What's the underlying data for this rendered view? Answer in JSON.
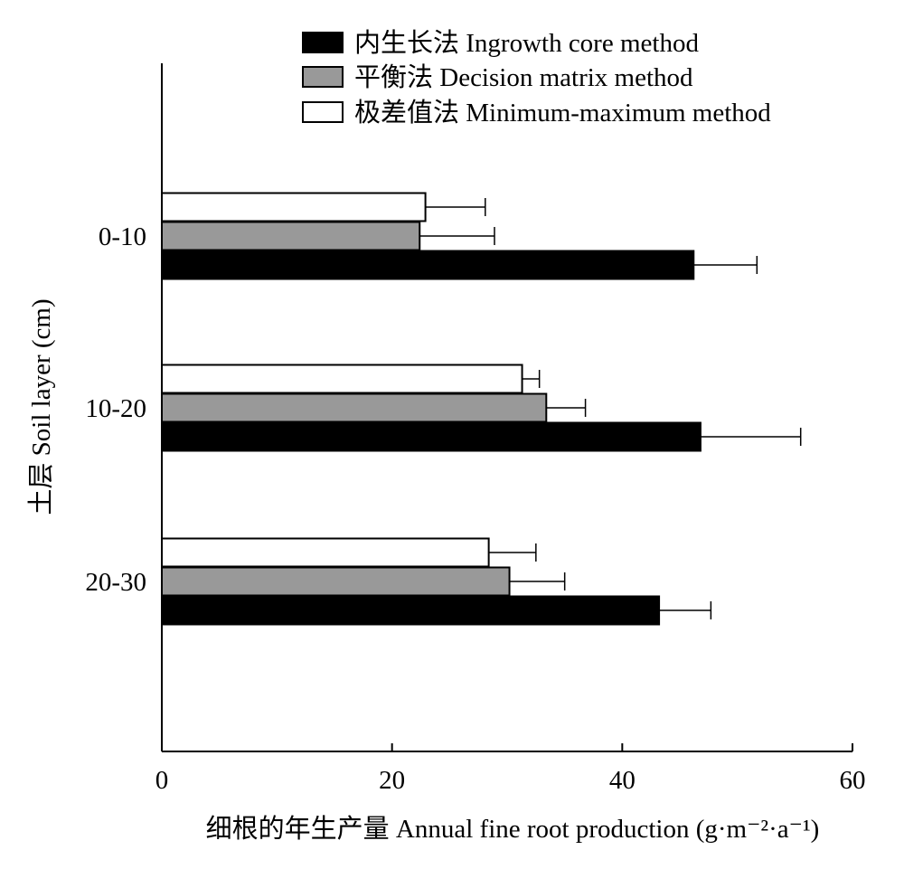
{
  "chart_data": {
    "type": "bar",
    "orientation": "horizontal",
    "categories": [
      "0-10",
      "10-20",
      "20-30"
    ],
    "series": [
      {
        "name": "内生长法 Ingrowth core method",
        "color": "#000000",
        "values": [
          46.2,
          46.8,
          43.2
        ],
        "errors": [
          5.5,
          8.7,
          4.5
        ]
      },
      {
        "name": "平衡法 Decision matrix method",
        "color": "#999999",
        "values": [
          22.4,
          33.4,
          30.2
        ],
        "errors": [
          6.5,
          3.4,
          4.8
        ]
      },
      {
        "name": "极差值法 Minimum-maximum method",
        "color": "#ffffff",
        "values": [
          22.9,
          31.3,
          28.4
        ],
        "errors": [
          5.2,
          1.5,
          4.1
        ]
      }
    ],
    "xlabel": "细根的年生产量 Annual fine root production (g·m⁻²·a⁻¹)",
    "ylabel": "土层 Soil layer (cm)",
    "xlim": [
      0,
      60
    ],
    "xticks": [
      0,
      20,
      40,
      60
    ],
    "grid": false,
    "legend_position": "top-right"
  }
}
